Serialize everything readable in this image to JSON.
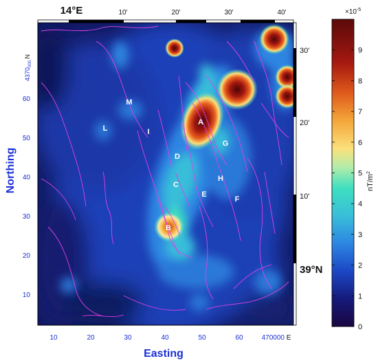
{
  "map": {
    "x_axis_title": "Easting",
    "y_axis_title": "Northing",
    "x_ticks": [
      "10",
      "20",
      "30",
      "40",
      "50",
      "60"
    ],
    "x_last_tick_number": "470000",
    "x_last_tick_unit": "E",
    "y_ticks": [
      "10",
      "20",
      "30",
      "40",
      "50",
      "60"
    ],
    "y_top_tick_prefix": "4370",
    "y_top_tick_sub": "000",
    "y_top_tick_unit": "N",
    "top_ticks": [
      "10'",
      "20'",
      "30'",
      "40'"
    ],
    "top_main_tick": "14°E",
    "right_ticks": [
      "30'",
      "20'",
      "10'"
    ],
    "right_main_tick": "39°N",
    "features": [
      "A",
      "B",
      "C",
      "D",
      "E",
      "F",
      "G",
      "H",
      "I",
      "L",
      "M"
    ],
    "contour_color": "#e040e8"
  },
  "colorbar": {
    "ticks": [
      "0",
      "1",
      "2",
      "3",
      "4",
      "5",
      "6",
      "7",
      "8",
      "9"
    ],
    "multiplier": "×10",
    "multiplier_exp": "-5",
    "unit_base": "nT/m",
    "unit_exp": "2",
    "range": [
      0,
      10
    ],
    "colors": [
      "#1a0540",
      "#151a7a",
      "#1c47c4",
      "#2d86e2",
      "#38bed9",
      "#3edfc0",
      "#b5eca9",
      "#fbe07a",
      "#f4a63a",
      "#df5a1c",
      "#a41810",
      "#5a0a0a"
    ]
  }
}
